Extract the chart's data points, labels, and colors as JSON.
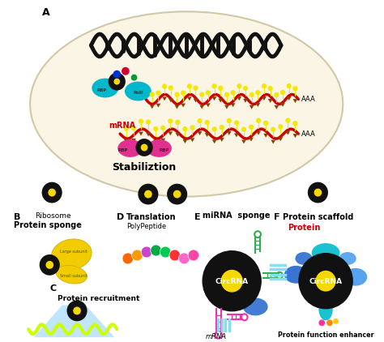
{
  "bg_color": "#ffffff",
  "ellipse_fill": "#faf5e4",
  "dna_color": "#111111",
  "rna_color": "#cc0000",
  "circrna_black": "#111111",
  "circrna_yellow": "#f5d800",
  "yellow_tri": "#f5e800",
  "dark_tri": "#884400",
  "rbp_cyan": "#00b8cc",
  "rbp_pink": "#e03090",
  "polii_cyan": "#00ccbb",
  "dot_blue": "#0033cc",
  "dot_red": "#cc0033",
  "dot_green": "#009933",
  "text_A": "A",
  "text_B": "B",
  "text_C": "C",
  "text_D": "D",
  "text_E": "E",
  "text_F": "F",
  "text_stabilization": "Stabiliztion",
  "text_mRNA": "mRNA",
  "text_AAA": "AAA",
  "text_RBP": "RBP",
  "text_PolII": "PolII",
  "text_protein_sponge": "Protein sponge",
  "text_ribosome": "Ribosome",
  "text_translation": "Translation",
  "text_polypeptide": "PolyPeptide",
  "text_miRNA_sponge": "miRNA  sponge",
  "text_protein_scaffold": "Protein scaffold",
  "text_protein_red": "Protein",
  "text_CircRNA": "CircRNA",
  "text_protein_recruitment": "Protein recruitment",
  "text_protein_function": "Protein function enhancer",
  "text_mRNA_italic": "mRNA",
  "text_large_subunit": "Large subunit",
  "text_small_subunit": "Small subunit",
  "poly_colors": [
    "#ff6600",
    "#ff9900",
    "#cc44cc",
    "#00aa44",
    "#00cc55",
    "#ff3333",
    "#ff66cc",
    "#ff44aa"
  ],
  "miRNA_green": "#33aa55",
  "miRNA_pink": "#ee33aa",
  "miRNA_cyan_light": "#88ddee",
  "protein_blob_blue": "#2266cc",
  "protein_blob_teal": "#00bbcc",
  "protein_blob_mid": "#4499ee"
}
